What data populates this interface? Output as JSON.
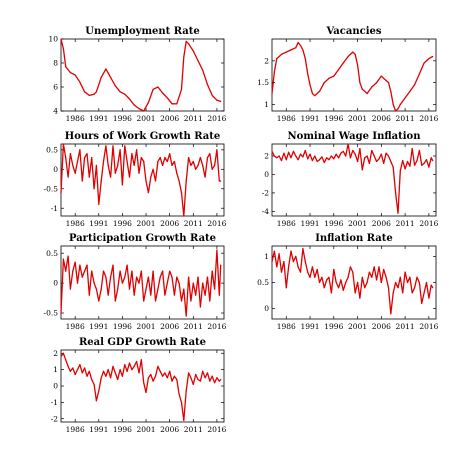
{
  "figure": {
    "series_color": "#e00000",
    "x_tick_labels": [
      "1986",
      "1991",
      "1996",
      "2001",
      "2006",
      "2011",
      "2016"
    ]
  },
  "chart_data": [
    {
      "type": "line",
      "title": "Unemployment Rate",
      "xlabel": "",
      "ylabel": "",
      "xlim": [
        1983.0,
        2017.5
      ],
      "ylim": [
        4,
        10
      ],
      "yticks": [
        4,
        6,
        8,
        10
      ],
      "ytick_labels": [
        "4",
        "6",
        "8",
        "10"
      ],
      "x": [
        1983.0,
        1983.5,
        1984.0,
        1985.0,
        1986.0,
        1987.0,
        1988.0,
        1989.0,
        1990.0,
        1990.5,
        1991.5,
        1992.5,
        1993.5,
        1994.5,
        1995.5,
        1996.5,
        1997.5,
        1998.5,
        1999.5,
        2000.5,
        2001.5,
        2002.5,
        2003.5,
        2004.5,
        2005.5,
        2006.5,
        2007.5,
        2008.5,
        2009.0,
        2009.5,
        2010.0,
        2011.0,
        2012.0,
        2013.0,
        2014.0,
        2015.0,
        2016.0,
        2016.8
      ],
      "values": [
        10.2,
        9.2,
        7.7,
        7.2,
        7.0,
        6.4,
        5.6,
        5.3,
        5.4,
        5.6,
        6.8,
        7.5,
        6.8,
        6.1,
        5.6,
        5.4,
        5.0,
        4.5,
        4.2,
        4.0,
        4.7,
        5.8,
        6.0,
        5.5,
        5.1,
        4.6,
        4.6,
        5.8,
        8.5,
        9.8,
        9.6,
        9.0,
        8.2,
        7.4,
        6.2,
        5.3,
        4.9,
        4.8
      ]
    },
    {
      "type": "line",
      "title": "Vacancies",
      "xlabel": "",
      "ylabel": "",
      "xlim": [
        1983.0,
        2017.5
      ],
      "ylim": [
        0.85,
        2.5
      ],
      "yticks": [
        1,
        1.5,
        2
      ],
      "ytick_labels": [
        "1",
        "1.5",
        "2"
      ],
      "x": [
        1983.0,
        1983.5,
        1984.0,
        1985.0,
        1986.0,
        1987.0,
        1988.0,
        1988.5,
        1989.0,
        1989.5,
        1990.0,
        1990.5,
        1991.0,
        1991.5,
        1992.0,
        1993.0,
        1994.0,
        1995.0,
        1996.0,
        1997.0,
        1998.0,
        1999.0,
        2000.0,
        2000.5,
        2001.0,
        2001.5,
        2002.0,
        2003.0,
        2004.0,
        2005.0,
        2006.0,
        2007.0,
        2007.5,
        2008.0,
        2008.5,
        2009.0,
        2009.5,
        2010.0,
        2011.0,
        2012.0,
        2013.0,
        2014.0,
        2015.0,
        2016.0,
        2016.8
      ],
      "values": [
        1.25,
        1.75,
        2.05,
        2.15,
        2.2,
        2.25,
        2.3,
        2.42,
        2.35,
        2.25,
        2.05,
        1.7,
        1.45,
        1.25,
        1.2,
        1.3,
        1.5,
        1.6,
        1.65,
        1.8,
        1.95,
        2.1,
        2.2,
        2.15,
        1.9,
        1.5,
        1.35,
        1.25,
        1.4,
        1.5,
        1.65,
        1.55,
        1.5,
        1.3,
        1.0,
        0.85,
        0.9,
        1.0,
        1.15,
        1.3,
        1.45,
        1.7,
        1.95,
        2.05,
        2.1
      ]
    },
    {
      "type": "line",
      "title": "Hours of Work Growth Rate",
      "xlabel": "",
      "ylabel": "",
      "xlim": [
        1983.0,
        2017.5
      ],
      "ylim": [
        -1.2,
        0.65
      ],
      "yticks": [
        -1,
        -0.5,
        0,
        0.5
      ],
      "ytick_labels": [
        "-1",
        "-0.5",
        "0",
        "0.5"
      ],
      "x": [
        1983.0,
        1983.5,
        1984.0,
        1984.5,
        1985.0,
        1985.5,
        1986.0,
        1986.5,
        1987.0,
        1987.5,
        1988.0,
        1988.5,
        1989.0,
        1989.5,
        1990.0,
        1990.5,
        1991.0,
        1991.5,
        1992.0,
        1992.5,
        1993.0,
        1993.5,
        1994.0,
        1994.5,
        1995.0,
        1995.5,
        1996.0,
        1996.5,
        1997.0,
        1997.5,
        1998.0,
        1998.5,
        1999.0,
        1999.5,
        2000.0,
        2000.5,
        2001.0,
        2001.5,
        2002.0,
        2002.5,
        2003.0,
        2003.5,
        2004.0,
        2004.5,
        2005.0,
        2005.5,
        2006.0,
        2006.5,
        2007.0,
        2007.5,
        2008.0,
        2008.5,
        2009.0,
        2009.5,
        2010.0,
        2010.5,
        2011.0,
        2011.5,
        2012.0,
        2012.5,
        2013.0,
        2013.5,
        2014.0,
        2014.5,
        2015.0,
        2015.5,
        2016.0,
        2016.5,
        2016.8
      ],
      "values": [
        -0.6,
        0.7,
        0.3,
        -0.2,
        0.4,
        0.1,
        -0.1,
        0.2,
        0.5,
        -0.3,
        0.3,
        0.4,
        -0.2,
        0.3,
        -0.5,
        0.1,
        -0.9,
        -0.3,
        0.2,
        0.6,
        0.1,
        -0.2,
        0.6,
        -0.1,
        0.1,
        0.5,
        -0.4,
        0.6,
        0.2,
        -0.2,
        0.4,
        0.1,
        0.5,
        -0.1,
        0.3,
        0.2,
        -0.3,
        -0.6,
        -0.2,
        0.0,
        -0.3,
        0.2,
        0.3,
        0.1,
        0.3,
        0.2,
        0.4,
        0.1,
        0.2,
        -0.1,
        -0.3,
        -0.6,
        -1.2,
        -0.3,
        0.3,
        0.1,
        0.2,
        0.0,
        0.1,
        0.3,
        0.1,
        -0.2,
        0.3,
        0.4,
        0.0,
        0.1,
        0.5,
        -0.3,
        -0.3
      ]
    },
    {
      "type": "line",
      "title": "Nominal Wage Inflation",
      "xlabel": "",
      "ylabel": "",
      "xlim": [
        1983.0,
        2017.5
      ],
      "ylim": [
        -4.5,
        3.3
      ],
      "yticks": [
        -4,
        -2,
        0,
        2
      ],
      "ytick_labels": [
        "-4",
        "-2",
        "0",
        "2"
      ],
      "x": [
        1983.0,
        1983.5,
        1984.0,
        1984.5,
        1985.0,
        1985.5,
        1986.0,
        1986.5,
        1987.0,
        1987.5,
        1988.0,
        1988.5,
        1989.0,
        1989.5,
        1990.0,
        1990.5,
        1991.0,
        1991.5,
        1992.0,
        1992.5,
        1993.0,
        1993.5,
        1994.0,
        1994.5,
        1995.0,
        1995.5,
        1996.0,
        1996.5,
        1997.0,
        1997.5,
        1998.0,
        1998.5,
        1999.0,
        1999.5,
        2000.0,
        2000.5,
        2001.0,
        2001.5,
        2002.0,
        2002.5,
        2003.0,
        2003.5,
        2004.0,
        2004.5,
        2005.0,
        2005.5,
        2006.0,
        2006.5,
        2007.0,
        2007.5,
        2008.0,
        2008.5,
        2009.0,
        2009.5,
        2010.0,
        2010.5,
        2011.0,
        2011.5,
        2012.0,
        2012.5,
        2013.0,
        2013.5,
        2014.0,
        2014.5,
        2015.0,
        2015.5,
        2016.0,
        2016.5,
        2016.8
      ],
      "values": [
        2.5,
        2.0,
        1.8,
        2.0,
        1.5,
        2.3,
        1.6,
        2.4,
        1.8,
        2.5,
        2.0,
        1.6,
        2.2,
        1.9,
        2.6,
        1.7,
        2.2,
        1.5,
        2.0,
        1.4,
        1.6,
        1.9,
        1.3,
        1.8,
        1.6,
        2.0,
        1.7,
        2.2,
        1.8,
        2.3,
        2.5,
        2.0,
        3.3,
        1.8,
        2.6,
        2.2,
        1.4,
        2.8,
        0.5,
        1.8,
        2.0,
        1.2,
        2.6,
        2.0,
        1.4,
        1.7,
        2.2,
        1.2,
        2.3,
        2.0,
        1.4,
        0.8,
        -2.0,
        -4.2,
        0.4,
        1.5,
        0.6,
        1.4,
        0.9,
        2.8,
        1.0,
        1.5,
        2.6,
        1.0,
        1.2,
        1.6,
        0.8,
        1.8,
        1.5
      ]
    },
    {
      "type": "line",
      "title": "Participation Growth Rate",
      "xlabel": "",
      "ylabel": "",
      "xlim": [
        1983.0,
        2017.5
      ],
      "ylim": [
        -0.6,
        0.62
      ],
      "yticks": [
        -0.5,
        0,
        0.5
      ],
      "ytick_labels": [
        "-0.5",
        "0",
        "0.5"
      ],
      "x": [
        1983.0,
        1983.5,
        1984.0,
        1984.5,
        1985.0,
        1985.5,
        1986.0,
        1986.5,
        1987.0,
        1987.5,
        1988.0,
        1988.5,
        1989.0,
        1989.5,
        1990.0,
        1990.5,
        1991.0,
        1991.5,
        1992.0,
        1992.5,
        1993.0,
        1993.5,
        1994.0,
        1994.5,
        1995.0,
        1995.5,
        1996.0,
        1996.5,
        1997.0,
        1997.5,
        1998.0,
        1998.5,
        1999.0,
        1999.5,
        2000.0,
        2000.5,
        2001.0,
        2001.5,
        2002.0,
        2002.5,
        2003.0,
        2003.5,
        2004.0,
        2004.5,
        2005.0,
        2005.5,
        2006.0,
        2006.5,
        2007.0,
        2007.5,
        2008.0,
        2008.5,
        2009.0,
        2009.5,
        2010.0,
        2010.5,
        2011.0,
        2011.5,
        2012.0,
        2012.5,
        2013.0,
        2013.5,
        2014.0,
        2014.5,
        2015.0,
        2015.5,
        2016.0,
        2016.5,
        2016.8
      ],
      "values": [
        -0.5,
        0.4,
        0.2,
        0.45,
        -0.1,
        0.2,
        0.35,
        0.0,
        0.3,
        0.1,
        0.2,
        0.3,
        -0.2,
        0.2,
        0.0,
        -0.1,
        -0.3,
        -0.1,
        0.2,
        0.1,
        -0.2,
        0.1,
        0.3,
        -0.3,
        -0.1,
        0.2,
        0.0,
        0.1,
        0.3,
        -0.1,
        0.2,
        -0.2,
        0.1,
        0.0,
        0.2,
        -0.3,
        -0.1,
        0.1,
        -0.2,
        0.2,
        -0.3,
        -0.1,
        0.1,
        0.2,
        -0.2,
        0.0,
        0.2,
        0.1,
        -0.2,
        0.1,
        0.0,
        -0.3,
        -0.1,
        -0.55,
        0.1,
        -0.3,
        0.0,
        -0.2,
        0.1,
        -0.4,
        0.0,
        -0.2,
        0.1,
        -0.3,
        0.2,
        -0.1,
        0.55,
        -0.2,
        0.3
      ]
    },
    {
      "type": "line",
      "title": "Inflation Rate",
      "xlabel": "",
      "ylabel": "",
      "xlim": [
        1983.0,
        2017.5
      ],
      "ylim": [
        -0.2,
        1.2
      ],
      "yticks": [
        0,
        0.5,
        1
      ],
      "ytick_labels": [
        "0",
        "0.5",
        "1"
      ],
      "x": [
        1983.0,
        1983.5,
        1984.0,
        1984.5,
        1985.0,
        1985.5,
        1986.0,
        1986.5,
        1987.0,
        1987.5,
        1988.0,
        1988.5,
        1989.0,
        1989.5,
        1990.0,
        1990.5,
        1991.0,
        1991.5,
        1992.0,
        1992.5,
        1993.0,
        1993.5,
        1994.0,
        1994.5,
        1995.0,
        1995.5,
        1996.0,
        1996.5,
        1997.0,
        1997.5,
        1998.0,
        1998.5,
        1999.0,
        1999.5,
        2000.0,
        2000.5,
        2001.0,
        2001.5,
        2002.0,
        2002.5,
        2003.0,
        2003.5,
        2004.0,
        2004.5,
        2005.0,
        2005.5,
        2006.0,
        2006.5,
        2007.0,
        2007.5,
        2008.0,
        2008.5,
        2009.0,
        2009.5,
        2010.0,
        2010.5,
        2011.0,
        2011.5,
        2012.0,
        2012.5,
        2013.0,
        2013.5,
        2014.0,
        2014.5,
        2015.0,
        2015.5,
        2016.0,
        2016.5,
        2016.8
      ],
      "values": [
        0.9,
        1.1,
        0.8,
        1.05,
        0.7,
        0.9,
        0.4,
        0.8,
        1.1,
        0.9,
        1.0,
        0.8,
        0.7,
        1.15,
        0.9,
        0.7,
        0.6,
        0.8,
        0.6,
        0.75,
        0.5,
        0.6,
        0.4,
        0.55,
        0.6,
        0.3,
        0.75,
        0.5,
        0.4,
        0.55,
        0.35,
        0.5,
        0.6,
        0.8,
        0.7,
        0.3,
        0.5,
        0.2,
        0.6,
        0.4,
        0.5,
        0.7,
        0.6,
        0.8,
        0.55,
        0.8,
        0.5,
        0.75,
        0.6,
        0.4,
        -0.1,
        0.3,
        0.5,
        0.4,
        0.6,
        0.3,
        0.7,
        0.5,
        0.6,
        0.3,
        0.4,
        0.6,
        0.5,
        0.1,
        0.3,
        0.5,
        0.2,
        0.45,
        0.4
      ]
    },
    {
      "type": "line",
      "title": "Real GDP Growth Rate",
      "xlabel": "",
      "ylabel": "",
      "xlim": [
        1983.0,
        2017.5
      ],
      "ylim": [
        -2.2,
        2.2
      ],
      "yticks": [
        -2,
        -1,
        0,
        1,
        2
      ],
      "ytick_labels": [
        "-2",
        "-1",
        "0",
        "1",
        "2"
      ],
      "x": [
        1983.0,
        1983.5,
        1984.0,
        1984.5,
        1985.0,
        1985.5,
        1986.0,
        1986.5,
        1987.0,
        1987.5,
        1988.0,
        1988.5,
        1989.0,
        1989.5,
        1990.0,
        1990.5,
        1991.0,
        1991.5,
        1992.0,
        1992.5,
        1993.0,
        1993.5,
        1994.0,
        1994.5,
        1995.0,
        1995.5,
        1996.0,
        1996.5,
        1997.0,
        1997.5,
        1998.0,
        1998.5,
        1999.0,
        1999.5,
        2000.0,
        2000.5,
        2001.0,
        2001.5,
        2002.0,
        2002.5,
        2003.0,
        2003.5,
        2004.0,
        2004.5,
        2005.0,
        2005.5,
        2006.0,
        2006.5,
        2007.0,
        2007.5,
        2008.0,
        2008.5,
        2009.0,
        2009.5,
        2010.0,
        2010.5,
        2011.0,
        2011.5,
        2012.0,
        2012.5,
        2013.0,
        2013.5,
        2014.0,
        2014.5,
        2015.0,
        2015.5,
        2016.0,
        2016.5,
        2016.8
      ],
      "values": [
        1.8,
        2.0,
        1.6,
        1.2,
        0.9,
        1.1,
        0.7,
        1.0,
        1.3,
        0.8,
        1.1,
        0.6,
        0.9,
        0.4,
        0.1,
        -0.9,
        -0.3,
        0.5,
        0.9,
        0.6,
        1.0,
        0.5,
        1.2,
        0.8,
        0.4,
        1.0,
        0.6,
        1.3,
        0.9,
        1.4,
        1.0,
        1.2,
        1.5,
        0.8,
        1.6,
        0.2,
        -0.4,
        0.5,
        0.7,
        0.3,
        0.6,
        1.2,
        0.9,
        0.6,
        0.8,
        0.5,
        0.9,
        0.3,
        0.6,
        0.4,
        -0.5,
        -1.0,
        -2.1,
        -0.3,
        0.8,
        0.5,
        0.1,
        0.7,
        0.4,
        0.3,
        0.9,
        0.5,
        0.8,
        0.3,
        0.6,
        0.2,
        0.5,
        0.3,
        0.4
      ]
    }
  ]
}
